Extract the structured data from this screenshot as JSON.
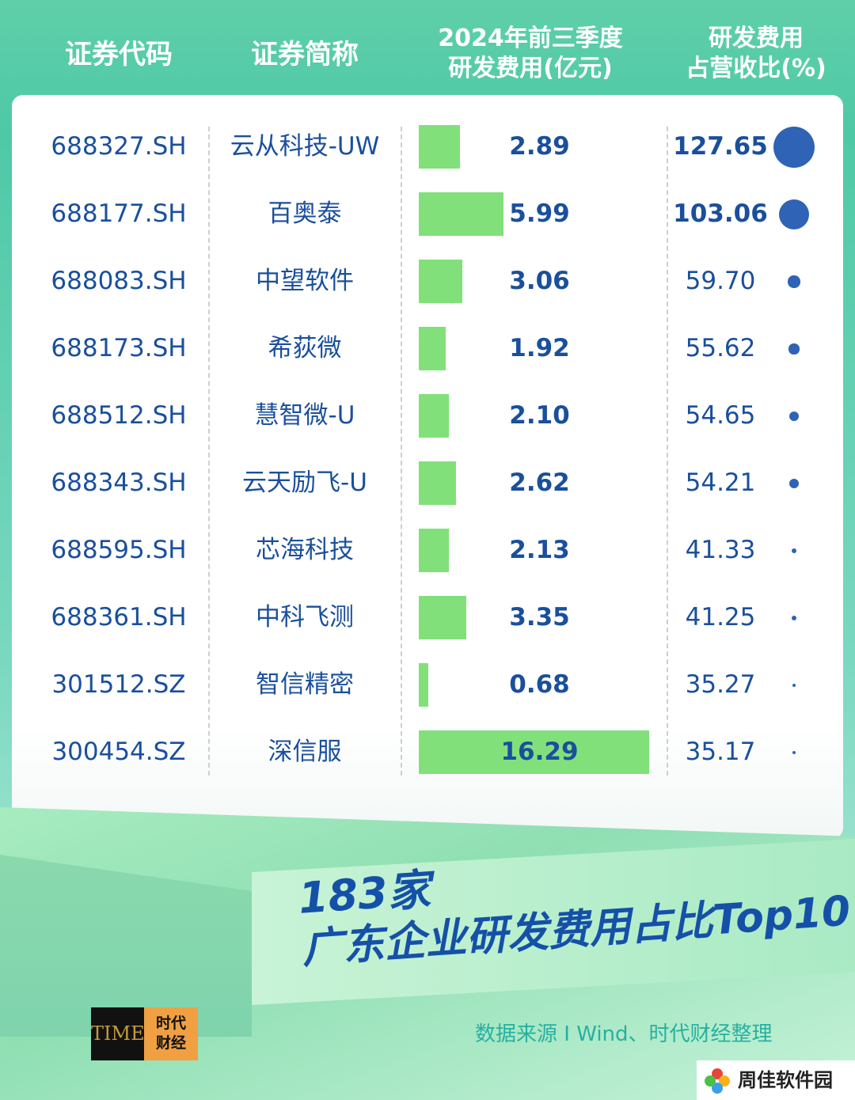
{
  "header": {
    "code": "证券代码",
    "name": "证券简称",
    "rd_line1": "2024年前三季度",
    "rd_line2": "研发费用(亿元)",
    "ratio_line1": "研发费用",
    "ratio_line2": "占营收比(%)"
  },
  "chart_data": {
    "type": "table",
    "columns": [
      "证券代码",
      "证券简称",
      "2024年前三季度研发费用(亿元)",
      "研发费用占营收比(%)"
    ],
    "rows": [
      {
        "code": "688327.SH",
        "name": "云从科技-UW",
        "rd_display": "2.89",
        "rd": 2.89,
        "ratio_display": "127.65",
        "ratio": 127.65
      },
      {
        "code": "688177.SH",
        "name": "百奥泰",
        "rd_display": "5.99",
        "rd": 5.99,
        "ratio_display": "103.06",
        "ratio": 103.06
      },
      {
        "code": "688083.SH",
        "name": "中望软件",
        "rd_display": "3.06",
        "rd": 3.06,
        "ratio_display": "59.70",
        "ratio": 59.7
      },
      {
        "code": "688173.SH",
        "name": "希荻微",
        "rd_display": "1.92",
        "rd": 1.92,
        "ratio_display": "55.62",
        "ratio": 55.62
      },
      {
        "code": "688512.SH",
        "name": "慧智微-U",
        "rd_display": "2.10",
        "rd": 2.1,
        "ratio_display": "54.65",
        "ratio": 54.65
      },
      {
        "code": "688343.SH",
        "name": "云天励飞-U",
        "rd_display": "2.62",
        "rd": 2.62,
        "ratio_display": "54.21",
        "ratio": 54.21
      },
      {
        "code": "688595.SH",
        "name": "芯海科技",
        "rd_display": "2.13",
        "rd": 2.13,
        "ratio_display": "41.33",
        "ratio": 41.33
      },
      {
        "code": "688361.SH",
        "name": "中科飞测",
        "rd_display": "3.35",
        "rd": 3.35,
        "ratio_display": "41.25",
        "ratio": 41.25
      },
      {
        "code": "301512.SZ",
        "name": "智信精密",
        "rd_display": "0.68",
        "rd": 0.68,
        "ratio_display": "35.27",
        "ratio": 35.27
      },
      {
        "code": "300454.SZ",
        "name": "深信服",
        "rd_display": "16.29",
        "rd": 16.29,
        "ratio_display": "35.17",
        "ratio": 35.17
      }
    ],
    "colors": {
      "bar": "#82e07a",
      "dot": "#2e63b5",
      "text": "#1a4f9c"
    }
  },
  "title": {
    "line1": "183家",
    "line2": "广东企业研发费用占比Top10"
  },
  "logo": {
    "left": "TIME",
    "right_line1": "时代",
    "right_line2": "财经"
  },
  "source": "数据来源 I Wind、时代财经整理",
  "watermark": "周佳软件园"
}
